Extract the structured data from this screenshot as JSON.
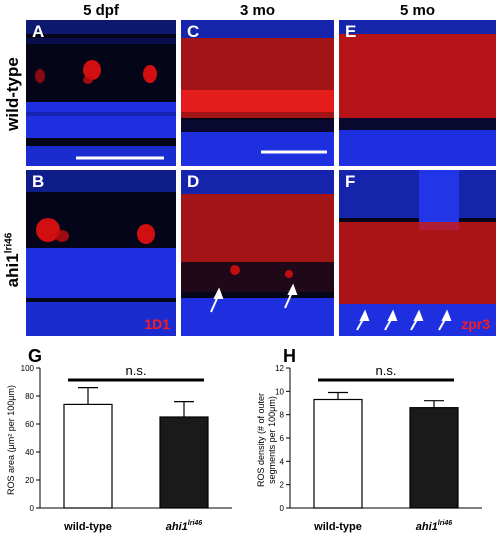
{
  "columns": [
    "5 dpf",
    "3 mo",
    "5 mo"
  ],
  "rows": {
    "wild_type": "wild-type",
    "mutant_base": "ahi1",
    "mutant_sup": "lri46"
  },
  "panels": {
    "A": "A",
    "B": "B",
    "C": "C",
    "D": "D",
    "E": "E",
    "F": "F"
  },
  "stains": {
    "b": "1D1",
    "f": "zpr3"
  },
  "colors": {
    "nuclei": "#1e2fe0",
    "stain": "#e81010",
    "background": "#05051a"
  },
  "icons": [
    "arrow-icon",
    "scale-bar-icon"
  ],
  "chart_data": [
    {
      "type": "bar",
      "panel": "G",
      "categories": [
        "wild-type",
        "ahi1lri46"
      ],
      "values": [
        74,
        65
      ],
      "errors": [
        12,
        11
      ],
      "ylabel": "ROS area (μm² per 100μm)",
      "ylim": [
        0,
        100
      ],
      "yticks": [
        0,
        20,
        40,
        60,
        80,
        100
      ],
      "annotation": "n.s.",
      "bar_fill": [
        "#ffffff",
        "#1a1a1a"
      ]
    },
    {
      "type": "bar",
      "panel": "H",
      "categories": [
        "wild-type",
        "ahi1lri46"
      ],
      "values": [
        9.3,
        8.6
      ],
      "errors": [
        0.6,
        0.6
      ],
      "ylabel_lines": [
        "ROS density (# of outer",
        "segments per 100μm)"
      ],
      "ylim": [
        0,
        12
      ],
      "yticks": [
        0,
        2,
        4,
        6,
        8,
        10,
        12
      ],
      "annotation": "n.s.",
      "bar_fill": [
        "#ffffff",
        "#1a1a1a"
      ]
    }
  ]
}
